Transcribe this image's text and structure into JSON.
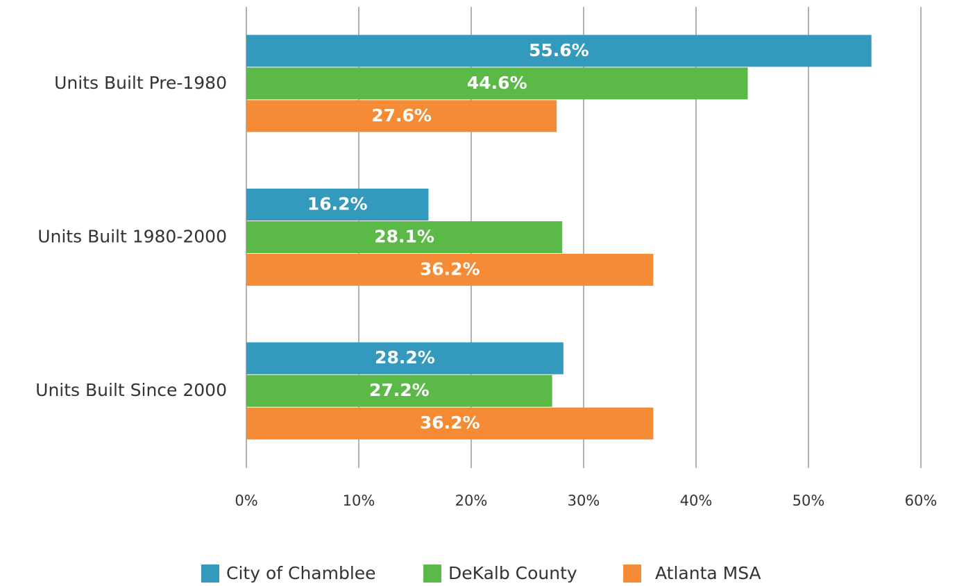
{
  "chart_data": {
    "type": "bar",
    "orientation": "horizontal",
    "categories": [
      "Units Built Pre-1980",
      "Units Built 1980-2000",
      "Units Built Since 2000"
    ],
    "series": [
      {
        "name": "City of Chamblee",
        "color": "#3399bd",
        "values": [
          55.6,
          16.2,
          28.2
        ],
        "value_labels": [
          "55.6%",
          "16.2%",
          "28.2%"
        ]
      },
      {
        "name": "DeKalb County",
        "color": "#5bb947",
        "values": [
          44.6,
          28.1,
          27.2
        ],
        "value_labels": [
          "44.6%",
          "28.1%",
          "27.2%"
        ]
      },
      {
        "name": "Atlanta MSA",
        "color": "#f58b35",
        "values": [
          27.6,
          36.2,
          36.2
        ],
        "value_labels": [
          "27.6%",
          "36.2%",
          "36.2%"
        ]
      }
    ],
    "xlim": [
      0,
      60
    ],
    "xticks": [
      {
        "value": 0,
        "label": "0%"
      },
      {
        "value": 10,
        "label": "10%"
      },
      {
        "value": 20,
        "label": "20%"
      },
      {
        "value": 30,
        "label": "30%"
      },
      {
        "value": 40,
        "label": "40%"
      },
      {
        "value": 50,
        "label": "50%"
      },
      {
        "value": 60,
        "label": "60%"
      }
    ],
    "grid": true,
    "legend": "bottom"
  }
}
